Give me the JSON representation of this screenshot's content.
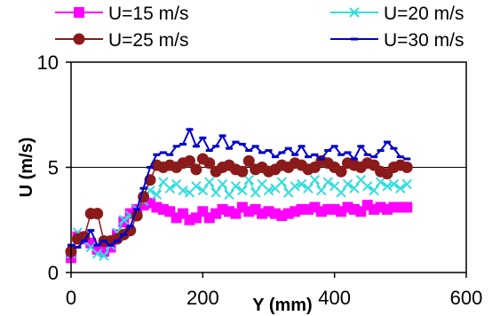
{
  "chart_data": {
    "type": "line",
    "xlabel": "Y (mm)",
    "ylabel": "U (m/s)",
    "xlim": [
      0,
      600
    ],
    "ylim": [
      0,
      10
    ],
    "xticks": [
      "0",
      "200",
      "400",
      "600"
    ],
    "yticks": [
      "0",
      "5",
      "10"
    ],
    "grid": "horizontal line at 5",
    "legend_position": "top",
    "series": [
      {
        "name": "U=15 m/s",
        "color": "#ff00ff",
        "marker": "square",
        "x": [
          0,
          10,
          20,
          30,
          40,
          50,
          60,
          70,
          80,
          90,
          100,
          110,
          120,
          130,
          140,
          150,
          160,
          170,
          180,
          190,
          200,
          210,
          220,
          230,
          240,
          250,
          260,
          270,
          280,
          290,
          300,
          310,
          320,
          330,
          340,
          350,
          360,
          370,
          380,
          390,
          400,
          410,
          420,
          430,
          440,
          450,
          460,
          470,
          480,
          490,
          500,
          510
        ],
        "y": [
          0.7,
          1.7,
          1.6,
          1.4,
          1.1,
          1.0,
          1.2,
          1.8,
          2.4,
          2.8,
          3.0,
          3.2,
          3.3,
          3.1,
          3.0,
          2.9,
          2.6,
          2.8,
          2.5,
          2.6,
          2.9,
          2.6,
          2.8,
          3.0,
          2.9,
          2.8,
          3.1,
          2.9,
          3.0,
          2.8,
          2.9,
          2.8,
          2.7,
          2.8,
          2.9,
          3.0,
          3.0,
          3.1,
          2.9,
          3.0,
          3.0,
          2.9,
          3.1,
          3.0,
          2.9,
          3.2,
          3.0,
          3.1,
          3.0,
          3.1,
          3.1,
          3.1
        ]
      },
      {
        "name": "U=20 m/s",
        "color": "#33dddd",
        "marker": "x",
        "x": [
          0,
          10,
          20,
          30,
          40,
          50,
          60,
          70,
          80,
          90,
          100,
          110,
          120,
          130,
          140,
          150,
          160,
          170,
          180,
          190,
          200,
          210,
          220,
          230,
          240,
          250,
          260,
          270,
          280,
          290,
          300,
          310,
          320,
          330,
          340,
          350,
          360,
          370,
          380,
          390,
          400,
          410,
          420,
          430,
          440,
          450,
          460,
          470,
          480,
          490,
          500,
          510
        ],
        "y": [
          0.9,
          1.9,
          1.5,
          1.2,
          0.9,
          0.8,
          1.3,
          1.9,
          2.5,
          2.7,
          3.0,
          3.4,
          3.9,
          3.7,
          4.3,
          4.0,
          4.2,
          3.9,
          3.8,
          4.1,
          3.9,
          4.3,
          3.8,
          4.2,
          3.7,
          4.1,
          3.9,
          4.4,
          3.8,
          4.2,
          3.9,
          4.0,
          4.3,
          3.8,
          4.1,
          4.2,
          4.0,
          4.4,
          3.9,
          4.3,
          4.1,
          3.8,
          4.2,
          4.0,
          4.4,
          4.1,
          3.9,
          4.3,
          4.1,
          4.2,
          4.0,
          4.2
        ]
      },
      {
        "name": "U=25 m/s",
        "color": "#8b1a1a",
        "marker": "circle",
        "x": [
          0,
          10,
          20,
          30,
          40,
          50,
          60,
          70,
          80,
          90,
          100,
          110,
          120,
          130,
          140,
          150,
          160,
          170,
          180,
          190,
          200,
          210,
          220,
          230,
          240,
          250,
          260,
          270,
          280,
          290,
          300,
          310,
          320,
          330,
          340,
          350,
          360,
          370,
          380,
          390,
          400,
          410,
          420,
          430,
          440,
          450,
          460,
          470,
          480,
          490,
          500,
          510
        ],
        "y": [
          1.0,
          1.6,
          1.7,
          2.8,
          2.8,
          1.5,
          1.5,
          1.6,
          1.8,
          2.0,
          2.7,
          3.6,
          4.4,
          5.1,
          5.0,
          5.1,
          5.0,
          5.2,
          5.3,
          4.9,
          5.4,
          5.2,
          4.8,
          5.0,
          5.1,
          4.9,
          4.8,
          5.3,
          4.9,
          5.0,
          4.8,
          4.9,
          5.1,
          5.0,
          5.2,
          5.1,
          4.9,
          5.0,
          5.3,
          5.2,
          5.0,
          4.8,
          5.2,
          5.1,
          5.0,
          5.2,
          5.1,
          4.8,
          4.7,
          5.0,
          5.1,
          5.0
        ]
      },
      {
        "name": "U=30 m/s",
        "color": "#0000cc",
        "marker": "dash",
        "x": [
          0,
          10,
          20,
          30,
          40,
          50,
          60,
          70,
          80,
          90,
          100,
          110,
          120,
          130,
          140,
          150,
          160,
          170,
          180,
          190,
          200,
          210,
          220,
          230,
          240,
          250,
          260,
          270,
          280,
          290,
          300,
          310,
          320,
          330,
          340,
          350,
          360,
          370,
          380,
          390,
          400,
          410,
          420,
          430,
          440,
          450,
          460,
          470,
          480,
          490,
          500,
          510
        ],
        "y": [
          1.3,
          1.2,
          1.5,
          2.0,
          1.3,
          1.5,
          1.3,
          1.5,
          1.8,
          2.2,
          3.0,
          4.0,
          5.0,
          5.6,
          5.7,
          5.6,
          6.0,
          6.1,
          6.8,
          6.0,
          6.4,
          5.8,
          6.0,
          6.5,
          5.9,
          6.2,
          6.1,
          5.8,
          6.0,
          5.7,
          5.8,
          5.5,
          5.7,
          5.9,
          5.6,
          6.0,
          5.5,
          5.6,
          5.4,
          5.8,
          6.0,
          5.6,
          5.7,
          5.4,
          6.0,
          5.6,
          5.5,
          5.8,
          6.2,
          5.9,
          5.5,
          5.4
        ]
      }
    ]
  }
}
